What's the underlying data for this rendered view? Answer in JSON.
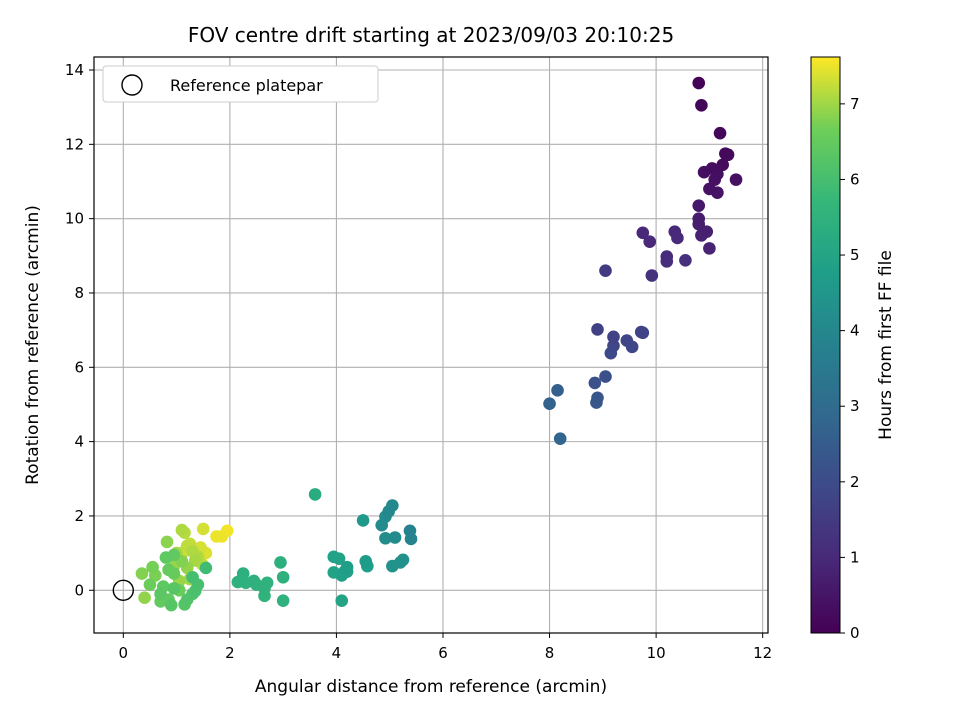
{
  "chart_data": {
    "type": "scatter",
    "title": "FOV centre drift starting at 2023/09/03 20:10:25",
    "xlabel": "Angular distance from reference (arcmin)",
    "ylabel": "Rotation from reference (arcmin)",
    "xlim": [
      -0.55,
      12.1
    ],
    "ylim": [
      -1.15,
      14.35
    ],
    "xticks": [
      0,
      2,
      4,
      6,
      8,
      10,
      12
    ],
    "yticks": [
      0,
      2,
      4,
      6,
      8,
      10,
      12,
      14
    ],
    "grid": true,
    "colormap": "viridis",
    "colorbar": {
      "label": "Hours from first FF file",
      "range": [
        0,
        7.62
      ],
      "ticks": [
        0,
        1,
        2,
        3,
        4,
        5,
        6,
        7
      ]
    },
    "legend": {
      "position": "top-left",
      "entries": [
        {
          "label": "Reference platepar",
          "marker": "open-circle"
        }
      ]
    },
    "reference": {
      "x": 0,
      "y": 0
    },
    "points": [
      {
        "x": 10.8,
        "y": 13.65,
        "t": 0.05
      },
      {
        "x": 10.85,
        "y": 13.05,
        "t": 0.1
      },
      {
        "x": 11.2,
        "y": 12.3,
        "t": 0.15
      },
      {
        "x": 11.3,
        "y": 11.75,
        "t": 0.2
      },
      {
        "x": 11.35,
        "y": 11.72,
        "t": 0.22
      },
      {
        "x": 11.25,
        "y": 11.45,
        "t": 0.25
      },
      {
        "x": 11.05,
        "y": 11.35,
        "t": 0.3
      },
      {
        "x": 10.9,
        "y": 11.25,
        "t": 0.32
      },
      {
        "x": 11.15,
        "y": 11.2,
        "t": 0.35
      },
      {
        "x": 11.1,
        "y": 11.05,
        "t": 0.38
      },
      {
        "x": 11.5,
        "y": 11.05,
        "t": 0.4
      },
      {
        "x": 11.0,
        "y": 10.8,
        "t": 0.42
      },
      {
        "x": 11.15,
        "y": 10.7,
        "t": 0.45
      },
      {
        "x": 10.8,
        "y": 10.35,
        "t": 0.55
      },
      {
        "x": 10.8,
        "y": 10.0,
        "t": 0.65
      },
      {
        "x": 10.8,
        "y": 9.85,
        "t": 0.7
      },
      {
        "x": 10.95,
        "y": 9.65,
        "t": 0.75
      },
      {
        "x": 10.85,
        "y": 9.55,
        "t": 0.8
      },
      {
        "x": 11.0,
        "y": 9.2,
        "t": 0.85
      },
      {
        "x": 9.75,
        "y": 9.62,
        "t": 0.95
      },
      {
        "x": 9.88,
        "y": 9.38,
        "t": 1.0
      },
      {
        "x": 10.35,
        "y": 9.65,
        "t": 1.02
      },
      {
        "x": 10.4,
        "y": 9.48,
        "t": 1.05
      },
      {
        "x": 10.2,
        "y": 8.98,
        "t": 1.1
      },
      {
        "x": 10.2,
        "y": 8.85,
        "t": 1.12
      },
      {
        "x": 10.55,
        "y": 8.88,
        "t": 1.15
      },
      {
        "x": 9.92,
        "y": 8.47,
        "t": 1.2
      },
      {
        "x": 9.05,
        "y": 8.6,
        "t": 1.5
      },
      {
        "x": 8.9,
        "y": 7.02,
        "t": 1.65
      },
      {
        "x": 9.2,
        "y": 6.82,
        "t": 1.7
      },
      {
        "x": 9.72,
        "y": 6.95,
        "t": 1.75
      },
      {
        "x": 9.75,
        "y": 6.93,
        "t": 1.77
      },
      {
        "x": 9.45,
        "y": 6.72,
        "t": 1.8
      },
      {
        "x": 9.2,
        "y": 6.58,
        "t": 1.82
      },
      {
        "x": 9.55,
        "y": 6.55,
        "t": 1.85
      },
      {
        "x": 9.15,
        "y": 6.38,
        "t": 1.9
      },
      {
        "x": 9.05,
        "y": 5.75,
        "t": 2.1
      },
      {
        "x": 8.85,
        "y": 5.58,
        "t": 2.15
      },
      {
        "x": 8.9,
        "y": 5.18,
        "t": 2.3
      },
      {
        "x": 8.88,
        "y": 5.05,
        "t": 2.35
      },
      {
        "x": 8.15,
        "y": 5.38,
        "t": 2.6
      },
      {
        "x": 8.0,
        "y": 5.02,
        "t": 2.7
      },
      {
        "x": 8.2,
        "y": 4.08,
        "t": 2.8
      },
      {
        "x": 5.05,
        "y": 2.28,
        "t": 4.0
      },
      {
        "x": 4.98,
        "y": 2.12,
        "t": 4.05
      },
      {
        "x": 4.92,
        "y": 1.98,
        "t": 4.1
      },
      {
        "x": 5.38,
        "y": 1.6,
        "t": 3.8
      },
      {
        "x": 5.4,
        "y": 1.38,
        "t": 3.85
      },
      {
        "x": 4.85,
        "y": 1.75,
        "t": 4.15
      },
      {
        "x": 4.92,
        "y": 1.4,
        "t": 4.2
      },
      {
        "x": 5.1,
        "y": 1.42,
        "t": 4.1
      },
      {
        "x": 5.25,
        "y": 0.82,
        "t": 4.3
      },
      {
        "x": 5.2,
        "y": 0.75,
        "t": 4.35
      },
      {
        "x": 5.05,
        "y": 0.65,
        "t": 4.4
      },
      {
        "x": 4.5,
        "y": 1.88,
        "t": 4.6
      },
      {
        "x": 4.55,
        "y": 0.78,
        "t": 4.7
      },
      {
        "x": 4.58,
        "y": 0.65,
        "t": 4.75
      },
      {
        "x": 4.2,
        "y": 0.62,
        "t": 4.8
      },
      {
        "x": 4.15,
        "y": 0.5,
        "t": 4.82
      },
      {
        "x": 4.1,
        "y": 0.4,
        "t": 4.85
      },
      {
        "x": 4.2,
        "y": 0.5,
        "t": 4.88
      },
      {
        "x": 3.95,
        "y": 0.9,
        "t": 4.9
      },
      {
        "x": 4.05,
        "y": 0.85,
        "t": 4.92
      },
      {
        "x": 3.95,
        "y": 0.48,
        "t": 4.95
      },
      {
        "x": 4.1,
        "y": -0.28,
        "t": 5.0
      },
      {
        "x": 3.6,
        "y": 2.58,
        "t": 5.3
      },
      {
        "x": 2.95,
        "y": 0.75,
        "t": 5.4
      },
      {
        "x": 3.0,
        "y": 0.35,
        "t": 5.45
      },
      {
        "x": 3.0,
        "y": -0.28,
        "t": 5.5
      },
      {
        "x": 2.7,
        "y": 0.2,
        "t": 5.5
      },
      {
        "x": 2.65,
        "y": 0.05,
        "t": 5.52
      },
      {
        "x": 2.65,
        "y": -0.15,
        "t": 5.55
      },
      {
        "x": 2.45,
        "y": 0.25,
        "t": 5.45
      },
      {
        "x": 2.5,
        "y": 0.15,
        "t": 5.5
      },
      {
        "x": 2.25,
        "y": 0.45,
        "t": 5.4
      },
      {
        "x": 2.2,
        "y": 0.25,
        "t": 5.42
      },
      {
        "x": 2.3,
        "y": 0.2,
        "t": 5.48
      },
      {
        "x": 2.15,
        "y": 0.22,
        "t": 5.5
      },
      {
        "x": 1.55,
        "y": 0.6,
        "t": 5.9
      },
      {
        "x": 1.3,
        "y": 0.35,
        "t": 6.0
      },
      {
        "x": 1.4,
        "y": 0.15,
        "t": 6.05
      },
      {
        "x": 1.35,
        "y": -0.02,
        "t": 6.1
      },
      {
        "x": 1.2,
        "y": -0.25,
        "t": 6.2
      },
      {
        "x": 1.15,
        "y": -0.38,
        "t": 6.25
      },
      {
        "x": 0.95,
        "y": 0.05,
        "t": 6.3
      },
      {
        "x": 0.7,
        "y": -0.1,
        "t": 6.35
      },
      {
        "x": 0.75,
        "y": 0.1,
        "t": 6.4
      },
      {
        "x": 0.85,
        "y": -0.25,
        "t": 6.45
      },
      {
        "x": 0.7,
        "y": -0.3,
        "t": 6.5
      },
      {
        "x": 0.85,
        "y": 0.55,
        "t": 6.5
      },
      {
        "x": 0.5,
        "y": 0.15,
        "t": 6.6
      },
      {
        "x": 0.95,
        "y": 0.45,
        "t": 6.55
      },
      {
        "x": 0.8,
        "y": 0.88,
        "t": 6.4
      },
      {
        "x": 0.95,
        "y": 0.95,
        "t": 6.45
      },
      {
        "x": 0.55,
        "y": 0.62,
        "t": 6.7
      },
      {
        "x": 0.35,
        "y": 0.45,
        "t": 6.8
      },
      {
        "x": 0.4,
        "y": -0.2,
        "t": 6.9
      },
      {
        "x": 0.6,
        "y": 0.4,
        "t": 6.75
      },
      {
        "x": 0.82,
        "y": 1.3,
        "t": 6.85
      },
      {
        "x": 1.1,
        "y": 0.78,
        "t": 6.8
      },
      {
        "x": 1.2,
        "y": 0.6,
        "t": 6.9
      },
      {
        "x": 1.05,
        "y": 0.25,
        "t": 6.95
      },
      {
        "x": 1.25,
        "y": 0.3,
        "t": 7.0
      },
      {
        "x": 0.95,
        "y": 0.65,
        "t": 6.95
      },
      {
        "x": 1.35,
        "y": 0.8,
        "t": 7.05
      },
      {
        "x": 1.1,
        "y": 1.62,
        "t": 7.1
      },
      {
        "x": 1.15,
        "y": 1.55,
        "t": 7.15
      },
      {
        "x": 1.2,
        "y": 1.2,
        "t": 7.2
      },
      {
        "x": 1.25,
        "y": 1.25,
        "t": 7.25
      },
      {
        "x": 1.15,
        "y": 1.05,
        "t": 7.3
      },
      {
        "x": 1.45,
        "y": 1.15,
        "t": 7.35
      },
      {
        "x": 1.55,
        "y": 1.0,
        "t": 7.4
      },
      {
        "x": 1.48,
        "y": 0.7,
        "t": 7.2
      },
      {
        "x": 1.5,
        "y": 1.65,
        "t": 7.35
      },
      {
        "x": 1.75,
        "y": 1.45,
        "t": 7.5
      },
      {
        "x": 1.85,
        "y": 1.45,
        "t": 7.52
      },
      {
        "x": 1.95,
        "y": 1.6,
        "t": 7.55
      },
      {
        "x": 1.0,
        "y": 1.0,
        "t": 7.0
      },
      {
        "x": 1.3,
        "y": 1.05,
        "t": 7.1
      },
      {
        "x": 1.4,
        "y": 0.9,
        "t": 7.12
      },
      {
        "x": 0.9,
        "y": -0.4,
        "t": 6.3
      },
      {
        "x": 1.05,
        "y": 0.0,
        "t": 6.6
      },
      {
        "x": 1.3,
        "y": -0.1,
        "t": 6.15
      }
    ]
  }
}
